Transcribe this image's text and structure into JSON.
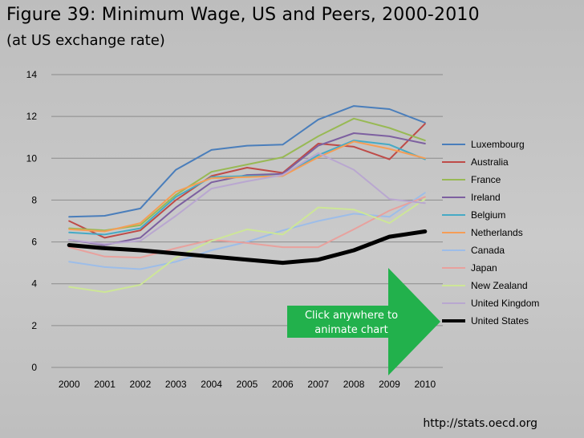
{
  "slide": {
    "title": "Figure 39: Minimum Wage, US and Peers, 2000-2010",
    "subtitle": "(at US exchange rate)",
    "source": "http://stats.oecd.org"
  },
  "callout": {
    "line1": "Click anywhere  to",
    "line2": "animate chart",
    "color": "#22b14c"
  },
  "chart_data": {
    "type": "line",
    "title": "Figure 39: Minimum Wage, US and Peers, 2000-2010",
    "xlabel": "",
    "ylabel": "",
    "ylim": [
      0,
      14
    ],
    "yticks": [
      0,
      2,
      4,
      6,
      8,
      10,
      12,
      14
    ],
    "grid": true,
    "legend": "right",
    "categories": [
      "2000",
      "2001",
      "2002",
      "2003",
      "2004",
      "2005",
      "2006",
      "2007",
      "2008",
      "2009",
      "2010"
    ],
    "series": [
      {
        "name": "Luxembourg",
        "color": "#4a7ebb",
        "values": [
          7.2,
          7.25,
          7.6,
          9.45,
          10.4,
          10.6,
          10.65,
          11.85,
          12.5,
          12.35,
          11.7
        ]
      },
      {
        "name": "Australia",
        "color": "#be4b48",
        "values": [
          7.0,
          6.2,
          6.55,
          8.0,
          9.15,
          9.55,
          9.3,
          10.7,
          10.55,
          9.95,
          11.65
        ]
      },
      {
        "name": "France",
        "color": "#98b954",
        "values": [
          6.65,
          6.55,
          6.8,
          8.25,
          9.35,
          9.7,
          10.05,
          11.05,
          11.9,
          11.45,
          10.85
        ]
      },
      {
        "name": "Ireland",
        "color": "#7d60a0",
        "values": [
          6.1,
          5.85,
          6.2,
          7.65,
          8.85,
          9.2,
          9.25,
          10.6,
          11.2,
          11.05,
          10.7
        ]
      },
      {
        "name": "Belgium",
        "color": "#46aac5",
        "values": [
          6.45,
          6.35,
          6.65,
          8.15,
          9.1,
          9.15,
          9.15,
          10.15,
          10.85,
          10.65,
          9.95
        ]
      },
      {
        "name": "Netherlands",
        "color": "#f59d56",
        "values": [
          6.6,
          6.5,
          6.9,
          8.4,
          9.05,
          9.1,
          9.15,
          10.05,
          10.8,
          10.45,
          10.0
        ]
      },
      {
        "name": "Canada",
        "color": "#9dbde8",
        "values": [
          5.05,
          4.8,
          4.7,
          5.05,
          5.6,
          6.0,
          6.55,
          7.0,
          7.35,
          7.2,
          8.35
        ]
      },
      {
        "name": "Japan",
        "color": "#e8a19d",
        "values": [
          5.75,
          5.3,
          5.25,
          5.7,
          6.1,
          5.95,
          5.75,
          5.75,
          6.6,
          7.5,
          8.15
        ]
      },
      {
        "name": "New Zealand",
        "color": "#cde697",
        "values": [
          3.85,
          3.6,
          3.95,
          5.25,
          6.05,
          6.6,
          6.35,
          7.65,
          7.55,
          6.9,
          8.05
        ]
      },
      {
        "name": "United Kingdom",
        "color": "#b9a7d0",
        "values": [
          6.1,
          5.9,
          6.05,
          7.25,
          8.55,
          8.9,
          9.2,
          10.25,
          9.45,
          8.05,
          7.85
        ]
      },
      {
        "name": "United States",
        "color": "#000000",
        "values": [
          5.85,
          5.7,
          5.6,
          5.45,
          5.3,
          5.15,
          5.0,
          5.15,
          5.6,
          6.25,
          6.5
        ]
      }
    ]
  }
}
